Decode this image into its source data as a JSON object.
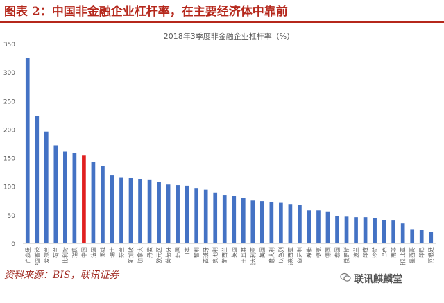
{
  "figure": {
    "title": "图表 2：中国非金融企业杠杆率，在主要经济体中靠前",
    "source": "资料来源：BIS，联讯证券",
    "watermark": "联讯麒麟堂",
    "watermark_icon": "wechat-icon"
  },
  "chart_data": {
    "type": "bar",
    "title": "2018年3季度非金融企业杠杆率（%）",
    "xlabel": "",
    "ylabel": "",
    "ylim": [
      0,
      350
    ],
    "yticks": [
      0,
      50,
      100,
      150,
      200,
      250,
      300,
      350
    ],
    "grid": false,
    "legend": "none",
    "bar_color": "#4472c4",
    "highlight_color": "#e02020",
    "highlight_category": "中国",
    "categories": [
      "卢森堡",
      "中国香港",
      "爱尔兰",
      "荷兰",
      "比利时",
      "瑞典",
      "中国",
      "法国",
      "挪威",
      "瑞士",
      "芬兰",
      "新加坡",
      "加拿大",
      "丹麦",
      "欧元区",
      "葡萄牙",
      "韩国",
      "日本",
      "智利",
      "西班牙",
      "奥地利",
      "新西兰",
      "英国",
      "土耳其",
      "澳大利亚",
      "美国",
      "意大利",
      "以色列",
      "马来西亚",
      "匈牙利",
      "希腊",
      "捷克",
      "德国",
      "泰国",
      "俄罗斯",
      "波兰",
      "印度",
      "沙特",
      "巴西",
      "南非",
      "哥伦比亚",
      "墨西哥",
      "印尼",
      "阿根廷"
    ],
    "values": [
      325,
      223,
      196,
      172,
      161,
      158,
      154,
      143,
      136,
      119,
      116,
      115,
      113,
      112,
      107,
      103,
      102,
      101,
      97,
      94,
      89,
      85,
      83,
      80,
      75,
      74,
      72,
      71,
      69,
      68,
      58,
      58,
      55,
      48,
      47,
      46,
      46,
      44,
      41,
      40,
      35,
      25,
      24,
      20
    ]
  }
}
